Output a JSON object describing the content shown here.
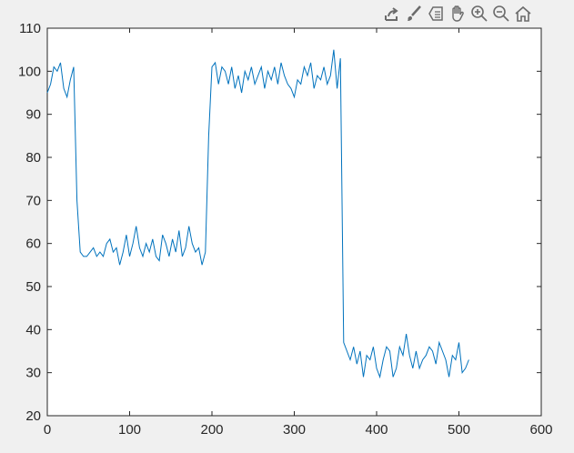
{
  "toolbar": {
    "icons": [
      "export-icon",
      "brush-icon",
      "data-tips-icon",
      "pan-icon",
      "zoom-in-icon",
      "zoom-out-icon",
      "home-icon"
    ]
  },
  "chart_data": {
    "type": "line",
    "title": "",
    "xlabel": "",
    "ylabel": "",
    "xlim": [
      0,
      600
    ],
    "ylim": [
      20,
      110
    ],
    "xticks": [
      0,
      100,
      200,
      300,
      400,
      500,
      600
    ],
    "yticks": [
      20,
      30,
      40,
      50,
      60,
      70,
      80,
      90,
      100,
      110
    ],
    "grid": false,
    "line_color": "#0072bd",
    "series": [
      {
        "points": [
          [
            0,
            95
          ],
          [
            4,
            97
          ],
          [
            8,
            101
          ],
          [
            12,
            100
          ],
          [
            16,
            102
          ],
          [
            20,
            96
          ],
          [
            24,
            94
          ],
          [
            28,
            98
          ],
          [
            32,
            101
          ],
          [
            36,
            70
          ],
          [
            40,
            58
          ],
          [
            44,
            57
          ],
          [
            48,
            57
          ],
          [
            52,
            58
          ],
          [
            56,
            59
          ],
          [
            60,
            57
          ],
          [
            64,
            58
          ],
          [
            68,
            57
          ],
          [
            72,
            60
          ],
          [
            76,
            61
          ],
          [
            80,
            58
          ],
          [
            84,
            59
          ],
          [
            88,
            55
          ],
          [
            92,
            58
          ],
          [
            96,
            62
          ],
          [
            100,
            57
          ],
          [
            104,
            60
          ],
          [
            108,
            64
          ],
          [
            112,
            59
          ],
          [
            116,
            57
          ],
          [
            120,
            60
          ],
          [
            124,
            58
          ],
          [
            128,
            61
          ],
          [
            132,
            57
          ],
          [
            136,
            56
          ],
          [
            140,
            62
          ],
          [
            144,
            60
          ],
          [
            148,
            57
          ],
          [
            152,
            61
          ],
          [
            156,
            58
          ],
          [
            160,
            63
          ],
          [
            164,
            57
          ],
          [
            168,
            59
          ],
          [
            172,
            64
          ],
          [
            176,
            60
          ],
          [
            180,
            58
          ],
          [
            184,
            59
          ],
          [
            188,
            55
          ],
          [
            192,
            58
          ],
          [
            196,
            85
          ],
          [
            200,
            101
          ],
          [
            204,
            102
          ],
          [
            208,
            97
          ],
          [
            212,
            101
          ],
          [
            216,
            100
          ],
          [
            220,
            97
          ],
          [
            224,
            101
          ],
          [
            228,
            96
          ],
          [
            232,
            99
          ],
          [
            236,
            95
          ],
          [
            240,
            100
          ],
          [
            244,
            98
          ],
          [
            248,
            101
          ],
          [
            252,
            97
          ],
          [
            256,
            99
          ],
          [
            260,
            101
          ],
          [
            264,
            96
          ],
          [
            268,
            100
          ],
          [
            272,
            98
          ],
          [
            276,
            101
          ],
          [
            280,
            97
          ],
          [
            284,
            102
          ],
          [
            288,
            99
          ],
          [
            292,
            97
          ],
          [
            296,
            96
          ],
          [
            300,
            94
          ],
          [
            304,
            98
          ],
          [
            308,
            97
          ],
          [
            312,
            101
          ],
          [
            316,
            99
          ],
          [
            320,
            102
          ],
          [
            324,
            96
          ],
          [
            328,
            99
          ],
          [
            332,
            98
          ],
          [
            336,
            101
          ],
          [
            340,
            97
          ],
          [
            344,
            99
          ],
          [
            348,
            105
          ],
          [
            352,
            96
          ],
          [
            356,
            103
          ],
          [
            360,
            37
          ],
          [
            364,
            35
          ],
          [
            368,
            33
          ],
          [
            372,
            36
          ],
          [
            376,
            32
          ],
          [
            380,
            35
          ],
          [
            384,
            29
          ],
          [
            388,
            34
          ],
          [
            392,
            33
          ],
          [
            396,
            36
          ],
          [
            400,
            31
          ],
          [
            404,
            29
          ],
          [
            408,
            33
          ],
          [
            412,
            36
          ],
          [
            416,
            35
          ],
          [
            420,
            29
          ],
          [
            424,
            31
          ],
          [
            428,
            36
          ],
          [
            432,
            34
          ],
          [
            436,
            39
          ],
          [
            440,
            34
          ],
          [
            444,
            31
          ],
          [
            448,
            35
          ],
          [
            452,
            31
          ],
          [
            456,
            33
          ],
          [
            460,
            34
          ],
          [
            464,
            36
          ],
          [
            468,
            35
          ],
          [
            472,
            32
          ],
          [
            476,
            37
          ],
          [
            480,
            35
          ],
          [
            484,
            33
          ],
          [
            488,
            29
          ],
          [
            492,
            34
          ],
          [
            496,
            33
          ],
          [
            500,
            37
          ],
          [
            504,
            30
          ],
          [
            508,
            31
          ],
          [
            512,
            33
          ]
        ]
      }
    ]
  }
}
